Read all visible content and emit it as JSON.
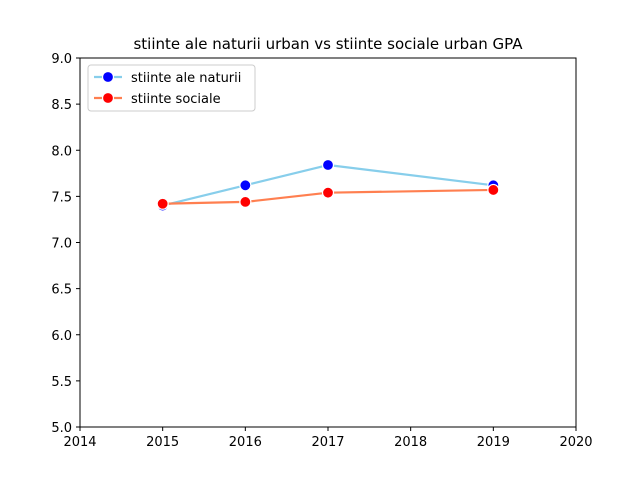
{
  "chart_data": {
    "type": "line",
    "title": "stiinte ale naturii urban vs stiinte sociale urban GPA",
    "xlabel": "",
    "ylabel": "",
    "xlim": [
      2014,
      2020
    ],
    "ylim": [
      5.0,
      9.0
    ],
    "xticks": [
      "2014",
      "2015",
      "2016",
      "2017",
      "2018",
      "2019",
      "2020"
    ],
    "yticks": [
      "5.0",
      "5.5",
      "6.0",
      "6.5",
      "7.0",
      "7.5",
      "8.0",
      "8.5",
      "9.0"
    ],
    "grid": false,
    "legend_position": "top-left",
    "series": [
      {
        "name": "stiinte ale naturii",
        "x": [
          2015,
          2016,
          2017,
          2019
        ],
        "values": [
          7.4,
          7.62,
          7.84,
          7.62
        ],
        "line_color": "#87ceeb",
        "marker_color": "#0000ff"
      },
      {
        "name": "stiinte sociale",
        "x": [
          2015,
          2016,
          2017,
          2019
        ],
        "values": [
          7.42,
          7.44,
          7.54,
          7.57
        ],
        "line_color": "#ff7f50",
        "marker_color": "#ff0000"
      }
    ]
  }
}
